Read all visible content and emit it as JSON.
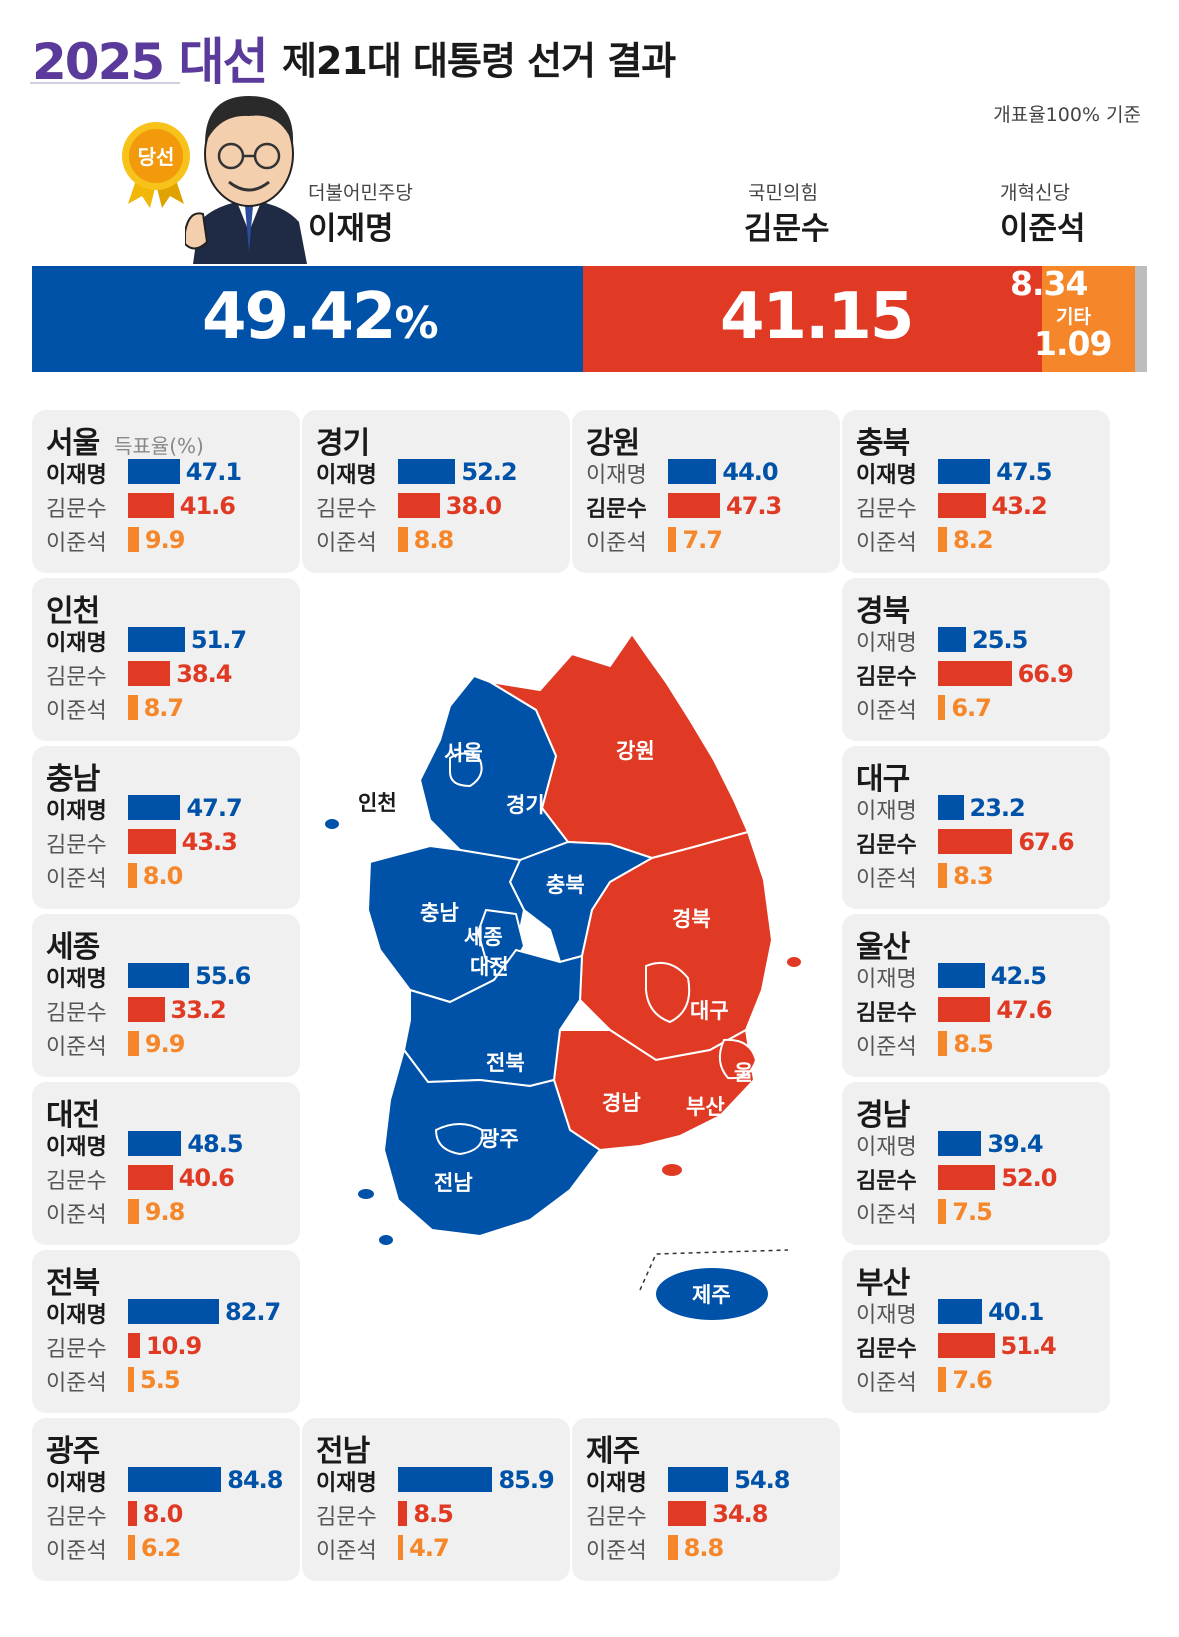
{
  "header": {
    "brand": "2025 대선",
    "title": "제21대 대통령 선거 결과",
    "basis": "개표율100% 기준",
    "winner_badge": "당선"
  },
  "colors": {
    "lee": "#0052a8",
    "kim": "#e03a24",
    "lee_jun": "#f5872a",
    "other": "#bdbdbd",
    "card_bg": "#f0f0f0"
  },
  "candidates": [
    {
      "party": "더불어민주당",
      "name": "이재명",
      "value": "49.42",
      "unit": "%"
    },
    {
      "party": "국민의힘",
      "name": "김문수",
      "value": "41.15"
    },
    {
      "party": "개혁신당",
      "name": "이준석",
      "value": "8.34"
    },
    {
      "party": "",
      "name": "기타",
      "value": "1.09"
    }
  ],
  "chart_data": {
    "type": "bar",
    "title": "제21대 대통령 선거 결과",
    "unit": "득표율(%)",
    "series": [
      {
        "name": "이재명",
        "values": [
          47.1,
          52.2,
          44.0,
          47.5,
          51.7,
          25.5,
          47.7,
          23.2,
          55.6,
          42.5,
          48.5,
          39.4,
          82.7,
          40.1,
          84.8,
          85.9,
          54.8
        ]
      },
      {
        "name": "김문수",
        "values": [
          41.6,
          38.0,
          47.3,
          43.2,
          38.4,
          66.9,
          43.3,
          67.6,
          33.2,
          47.6,
          40.6,
          52.0,
          10.9,
          51.4,
          8.0,
          8.5,
          34.8
        ]
      },
      {
        "name": "이준석",
        "values": [
          9.9,
          8.8,
          7.7,
          8.2,
          8.7,
          6.7,
          8.0,
          8.3,
          9.9,
          8.5,
          9.8,
          7.5,
          5.5,
          7.6,
          6.2,
          4.7,
          8.8
        ]
      }
    ],
    "regions": [
      {
        "name": "서울",
        "values": [
          "47.1",
          "41.6",
          "9.9"
        ],
        "winner": 0
      },
      {
        "name": "경기",
        "values": [
          "52.2",
          "38.0",
          "8.8"
        ],
        "winner": 0
      },
      {
        "name": "강원",
        "values": [
          "44.0",
          "47.3",
          "7.7"
        ],
        "winner": 1
      },
      {
        "name": "충북",
        "values": [
          "47.5",
          "43.2",
          "8.2"
        ],
        "winner": 0
      },
      {
        "name": "인천",
        "values": [
          "51.7",
          "38.4",
          "8.7"
        ],
        "winner": 0
      },
      {
        "name": "경북",
        "values": [
          "25.5",
          "66.9",
          "6.7"
        ],
        "winner": 1
      },
      {
        "name": "충남",
        "values": [
          "47.7",
          "43.3",
          "8.0"
        ],
        "winner": 0
      },
      {
        "name": "대구",
        "values": [
          "23.2",
          "67.6",
          "8.3"
        ],
        "winner": 1
      },
      {
        "name": "세종",
        "values": [
          "55.6",
          "33.2",
          "9.9"
        ],
        "winner": 0
      },
      {
        "name": "울산",
        "values": [
          "42.5",
          "47.6",
          "8.5"
        ],
        "winner": 1
      },
      {
        "name": "대전",
        "values": [
          "48.5",
          "40.6",
          "9.8"
        ],
        "winner": 0
      },
      {
        "name": "경남",
        "values": [
          "39.4",
          "52.0",
          "7.5"
        ],
        "winner": 1
      },
      {
        "name": "전북",
        "values": [
          "82.7",
          "10.9",
          "5.5"
        ],
        "winner": 0
      },
      {
        "name": "부산",
        "values": [
          "40.1",
          "51.4",
          "7.6"
        ],
        "winner": 1
      },
      {
        "name": "광주",
        "values": [
          "84.8",
          "8.0",
          "6.2"
        ],
        "winner": 0
      },
      {
        "name": "전남",
        "values": [
          "85.9",
          "8.5",
          "4.7"
        ],
        "winner": 0
      },
      {
        "name": "제주",
        "values": [
          "54.8",
          "34.8",
          "8.8"
        ],
        "winner": 0
      }
    ]
  },
  "map": {
    "labels": [
      "서울",
      "인천",
      "경기",
      "강원",
      "충북",
      "충남",
      "세종",
      "대전",
      "경북",
      "대구",
      "울산",
      "전북",
      "경남",
      "부산",
      "광주",
      "전남",
      "제주"
    ]
  }
}
